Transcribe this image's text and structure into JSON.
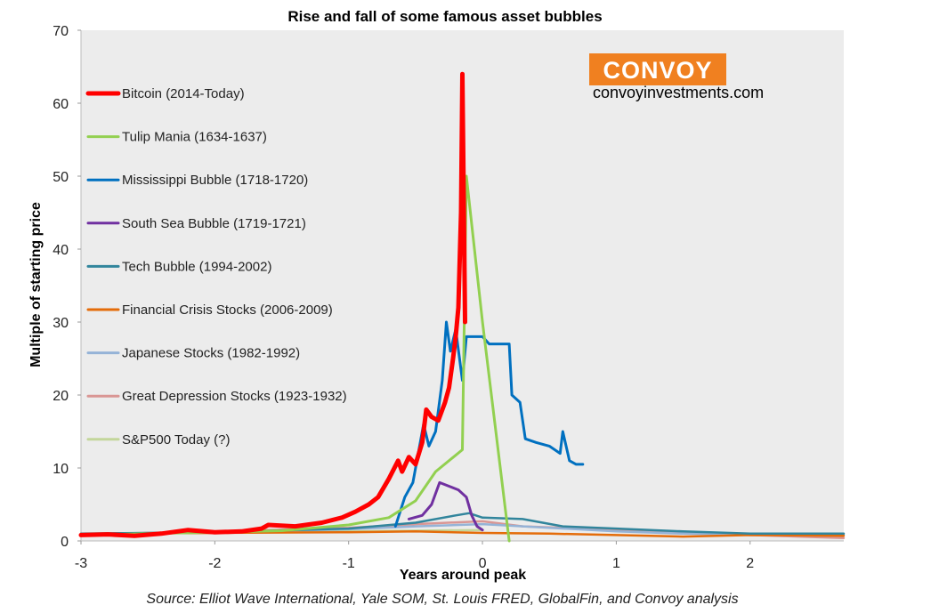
{
  "chart_data": {
    "type": "line",
    "title": "Rise and fall of some famous asset bubbles",
    "xlabel": "Years around peak",
    "ylabel": "Multiple of starting price",
    "xlim": [
      -3,
      2.7
    ],
    "ylim": [
      0,
      70
    ],
    "x_ticks": [
      "-3",
      "-2",
      "-1",
      "0",
      "1",
      "2"
    ],
    "y_ticks": [
      "0",
      "10",
      "20",
      "30",
      "40",
      "50",
      "60",
      "70"
    ],
    "grid": false,
    "legend_position": "top-left",
    "source": "Source: Elliot Wave International, Yale SOM, St. Louis FRED, GlobalFin, and Convoy analysis",
    "series": [
      {
        "name": "Bitcoin (2014-Today)",
        "color": "#ff0000",
        "points": [
          [
            -3,
            0.8
          ],
          [
            -2.8,
            0.9
          ],
          [
            -2.6,
            0.7
          ],
          [
            -2.4,
            1.0
          ],
          [
            -2.2,
            1.5
          ],
          [
            -2.0,
            1.2
          ],
          [
            -1.8,
            1.3
          ],
          [
            -1.65,
            1.7
          ],
          [
            -1.6,
            2.2
          ],
          [
            -1.4,
            2.0
          ],
          [
            -1.2,
            2.5
          ],
          [
            -1.05,
            3.2
          ],
          [
            -0.95,
            4.0
          ],
          [
            -0.85,
            5.0
          ],
          [
            -0.78,
            6.0
          ],
          [
            -0.7,
            8.5
          ],
          [
            -0.63,
            11.0
          ],
          [
            -0.6,
            9.5
          ],
          [
            -0.55,
            11.5
          ],
          [
            -0.5,
            10.5
          ],
          [
            -0.45,
            13.5
          ],
          [
            -0.42,
            18.0
          ],
          [
            -0.38,
            17.0
          ],
          [
            -0.33,
            16.5
          ],
          [
            -0.28,
            19.0
          ],
          [
            -0.25,
            21.0
          ],
          [
            -0.22,
            25.0
          ],
          [
            -0.2,
            28.0
          ],
          [
            -0.18,
            32.0
          ],
          [
            -0.16,
            45.0
          ],
          [
            -0.15,
            64.0
          ],
          [
            -0.14,
            47.0
          ],
          [
            -0.13,
            30.0
          ]
        ]
      },
      {
        "name": "Tulip Mania (1634-1637)",
        "color": "#92d050",
        "points": [
          [
            -3,
            0.8
          ],
          [
            -1.5,
            1.4
          ],
          [
            -1.0,
            2.2
          ],
          [
            -0.7,
            3.2
          ],
          [
            -0.5,
            5.5
          ],
          [
            -0.35,
            9.5
          ],
          [
            -0.15,
            12.5
          ],
          [
            -0.12,
            50.0
          ],
          [
            0.0,
            30.0
          ],
          [
            0.2,
            0.0
          ]
        ]
      },
      {
        "name": "Mississippi Bubble (1718-1720)",
        "color": "#0070c0",
        "points": [
          [
            -0.65,
            2.0
          ],
          [
            -0.58,
            6.0
          ],
          [
            -0.52,
            8.0
          ],
          [
            -0.48,
            12.0
          ],
          [
            -0.44,
            16.0
          ],
          [
            -0.4,
            13.0
          ],
          [
            -0.35,
            15.0
          ],
          [
            -0.3,
            22.0
          ],
          [
            -0.27,
            30.0
          ],
          [
            -0.24,
            26.0
          ],
          [
            -0.2,
            29.0
          ],
          [
            -0.15,
            22.0
          ],
          [
            -0.12,
            28.0
          ],
          [
            0.0,
            28.0
          ],
          [
            0.05,
            27.0
          ],
          [
            0.2,
            27.0
          ],
          [
            0.22,
            20.0
          ],
          [
            0.28,
            19.0
          ],
          [
            0.32,
            14.0
          ],
          [
            0.4,
            13.5
          ],
          [
            0.5,
            13.0
          ],
          [
            0.58,
            12.0
          ],
          [
            0.6,
            15.0
          ],
          [
            0.65,
            11.0
          ],
          [
            0.7,
            10.5
          ],
          [
            0.75,
            10.5
          ]
        ]
      },
      {
        "name": "South Sea Bubble (1719-1721)",
        "color": "#7030a0",
        "points": [
          [
            -0.55,
            3.0
          ],
          [
            -0.45,
            3.5
          ],
          [
            -0.38,
            5.0
          ],
          [
            -0.32,
            8.0
          ],
          [
            -0.25,
            7.5
          ],
          [
            -0.18,
            7.0
          ],
          [
            -0.12,
            6.0
          ],
          [
            -0.08,
            3.5
          ],
          [
            -0.04,
            2.0
          ],
          [
            0.0,
            1.5
          ]
        ]
      },
      {
        "name": "Tech Bubble (1994-2002)",
        "color": "#31859c",
        "points": [
          [
            -3,
            1.0
          ],
          [
            -2.0,
            1.2
          ],
          [
            -1.0,
            1.7
          ],
          [
            -0.5,
            2.5
          ],
          [
            -0.2,
            3.5
          ],
          [
            -0.1,
            3.8
          ],
          [
            0.0,
            3.2
          ],
          [
            0.3,
            3.0
          ],
          [
            0.6,
            2.0
          ],
          [
            1.0,
            1.7
          ],
          [
            1.5,
            1.3
          ],
          [
            2.0,
            1.0
          ],
          [
            2.7,
            1.0
          ]
        ]
      },
      {
        "name": "Financial Crisis Stocks (2006-2009)",
        "color": "#e46c0a",
        "points": [
          [
            -3,
            1.0
          ],
          [
            -2.0,
            1.1
          ],
          [
            -1.0,
            1.2
          ],
          [
            -0.5,
            1.3
          ],
          [
            0.0,
            1.1
          ],
          [
            0.5,
            1.0
          ],
          [
            1.0,
            0.8
          ],
          [
            1.5,
            0.6
          ],
          [
            2.0,
            0.8
          ],
          [
            2.7,
            0.7
          ]
        ]
      },
      {
        "name": "Japanese Stocks (1982-1992)",
        "color": "#95b3d7",
        "points": [
          [
            -3,
            0.9
          ],
          [
            -2.0,
            1.2
          ],
          [
            -1.0,
            1.6
          ],
          [
            -0.5,
            2.0
          ],
          [
            0.0,
            2.3
          ],
          [
            0.5,
            1.8
          ],
          [
            1.0,
            1.3
          ],
          [
            1.5,
            1.0
          ],
          [
            2.0,
            0.9
          ],
          [
            2.7,
            0.8
          ]
        ]
      },
      {
        "name": "Great Depression Stocks (1923-1932)",
        "color": "#d99694",
        "points": [
          [
            -3,
            0.9
          ],
          [
            -2.0,
            1.3
          ],
          [
            -1.0,
            1.8
          ],
          [
            -0.5,
            2.3
          ],
          [
            0.0,
            2.7
          ],
          [
            0.3,
            2.0
          ],
          [
            0.6,
            1.8
          ],
          [
            1.0,
            1.5
          ],
          [
            1.5,
            1.2
          ],
          [
            2.0,
            0.8
          ],
          [
            2.7,
            0.4
          ]
        ]
      },
      {
        "name": "S&P500 Today (?)",
        "color": "#c3d69b",
        "points": [
          [
            -3,
            1.0
          ],
          [
            -2.0,
            1.1
          ],
          [
            -1.0,
            1.3
          ],
          [
            -0.5,
            1.4
          ],
          [
            0.0,
            1.5
          ]
        ]
      }
    ]
  },
  "brand": {
    "name": "CONVOY",
    "url": "convoyinvestments.com",
    "color": "#f08020"
  }
}
